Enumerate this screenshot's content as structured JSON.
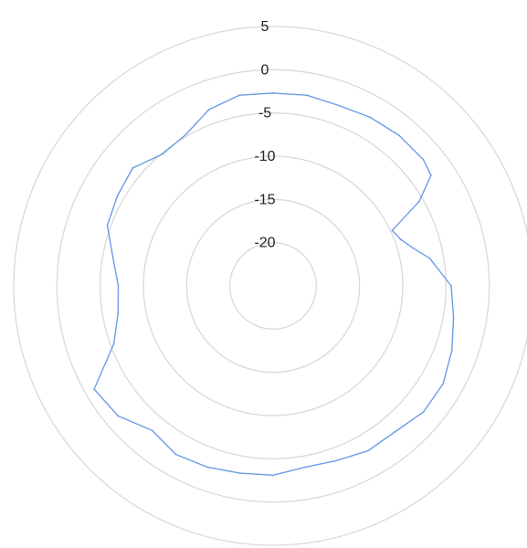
{
  "chart_data": {
    "type": "line",
    "subtype": "polar",
    "title": "",
    "xlabel": "",
    "ylabel": "",
    "radial_range": [
      -25,
      5
    ],
    "radial_ticks": [
      {
        "value": -20,
        "label": "-20"
      },
      {
        "value": -15,
        "label": "-15"
      },
      {
        "value": -10,
        "label": "-10"
      },
      {
        "value": -5,
        "label": "-5"
      },
      {
        "value": 0,
        "label": "0"
      },
      {
        "value": 5,
        "label": "5"
      }
    ],
    "angle_unit": "deg",
    "angle_zero": "top",
    "angle_direction": "clockwise",
    "grid": true,
    "legend": "none",
    "colors": {
      "grid": "#d9d9d9",
      "series": "#6b9de8",
      "text": "#222222"
    },
    "series": [
      {
        "color": "#6b9de8",
        "theta": [
          0,
          10,
          20,
          30,
          40,
          50,
          55,
          60,
          65,
          70,
          75,
          80,
          90,
          100,
          110,
          120,
          130,
          140,
          150,
          160,
          170,
          180,
          190,
          200,
          210,
          220,
          230,
          240,
          250,
          260,
          270,
          280,
          290,
          300,
          310,
          320,
          330,
          340,
          350,
          360
        ],
        "r": [
          -2.7,
          -2.6,
          -2.8,
          -2.5,
          -2.3,
          -2.3,
          -2.7,
          -5.5,
          -9.8,
          -9.3,
          -8.2,
          -6.6,
          -4.4,
          -3.8,
          -3.0,
          -2.3,
          -2.3,
          -3.0,
          -3.0,
          -3.5,
          -3.7,
          -3.1,
          -3.0,
          -2.7,
          -2.5,
          -3.2,
          -1.6,
          -1.1,
          -5.4,
          -6.8,
          -7.1,
          -6.2,
          -4.6,
          -4.2,
          -3.8,
          -5.1,
          -4.8,
          -3.3,
          -2.6,
          -2.7
        ]
      }
    ]
  }
}
